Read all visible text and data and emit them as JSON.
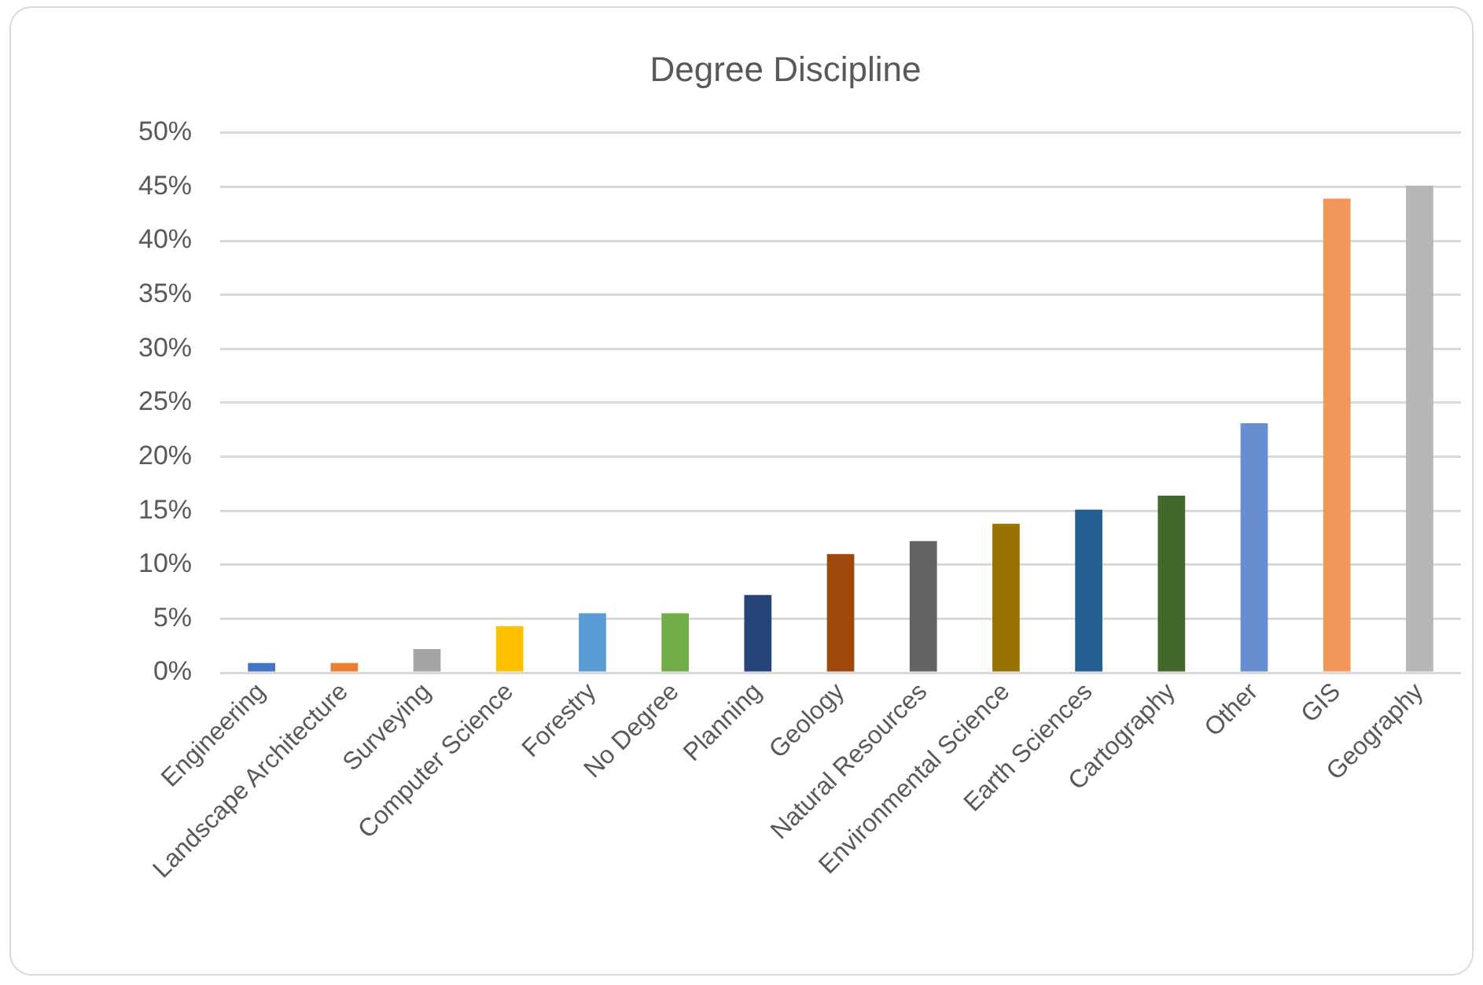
{
  "chart_data": {
    "type": "bar",
    "title": "Degree Discipline",
    "categories": [
      "Engineering",
      "Landscape Architecture",
      "Surveying",
      "Computer Science",
      "Forestry",
      "No Degree",
      "Planning",
      "Geology",
      "Natural Resources",
      "Environmental Science",
      "Earth Sciences",
      "Cartography",
      "Other",
      "GIS",
      "Geography"
    ],
    "values": [
      0.9,
      0.9,
      2.2,
      4.3,
      5.5,
      5.5,
      7.2,
      11.0,
      12.2,
      13.8,
      15.1,
      16.4,
      23.1,
      43.9,
      45.1
    ],
    "colors": [
      "#4472c4",
      "#ed7d31",
      "#a5a5a5",
      "#ffc000",
      "#5b9bd5",
      "#70ad47",
      "#264478",
      "#9e480e",
      "#636363",
      "#997300",
      "#255e91",
      "#43682b",
      "#698ed0",
      "#f1975a",
      "#b7b7b7"
    ],
    "ylim": [
      0,
      50
    ],
    "yticks": [
      {
        "value": 0,
        "label": "0%"
      },
      {
        "value": 5,
        "label": "5%"
      },
      {
        "value": 10,
        "label": "10%"
      },
      {
        "value": 15,
        "label": "15%"
      },
      {
        "value": 20,
        "label": "20%"
      },
      {
        "value": 25,
        "label": "25%"
      },
      {
        "value": 30,
        "label": "30%"
      },
      {
        "value": 35,
        "label": "35%"
      },
      {
        "value": 40,
        "label": "40%"
      },
      {
        "value": 45,
        "label": "45%"
      },
      {
        "value": 50,
        "label": "50%"
      }
    ],
    "grid": "y",
    "legend": false
  }
}
